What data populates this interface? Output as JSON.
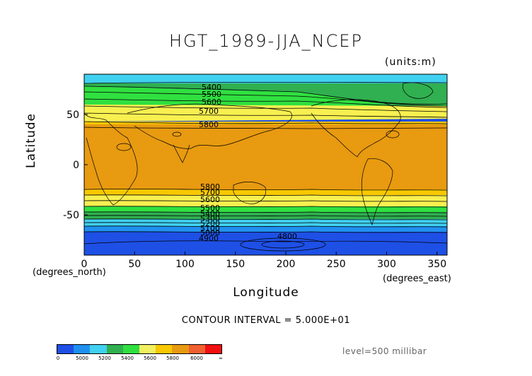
{
  "title": "HGT_1989-JJA_NCEP",
  "units": "(units:m)",
  "axes": {
    "ylabel": "Latitude",
    "xlabel": "Longitude",
    "x_unit": "(degrees_north)",
    "x_unit_right": "(degrees_east)",
    "x_ticks": [
      0,
      50,
      100,
      150,
      200,
      250,
      300,
      350
    ],
    "y_ticks": [
      50,
      0,
      -50
    ],
    "xlim": [
      0,
      360
    ],
    "ylim": [
      -90,
      90
    ]
  },
  "contour_interval": "CONTOUR INTERVAL = 5.000E+01",
  "level": "level=500 millibar",
  "colorbar": {
    "colors": [
      "#1e50e6",
      "#2090f0",
      "#40d0f0",
      "#30b050",
      "#30e040",
      "#f0f060",
      "#f8c800",
      "#e89a10",
      "#f06030",
      "#f01010"
    ],
    "tick_labels": [
      "0",
      "5000",
      "5200",
      "5400",
      "5600",
      "5800",
      "6000",
      "∞"
    ]
  },
  "contour_labels": [
    "5400",
    "5500",
    "5600",
    "5700",
    "5800",
    "5800",
    "5700",
    "5600",
    "5500",
    "5400",
    "5300",
    "5200",
    "5100",
    "5000",
    "4900",
    "4800"
  ],
  "colors": {
    "ocean_blue": "#1e50e6",
    "mid_blue": "#2090f0",
    "cyan": "#40d0f0",
    "green": "#30b050",
    "yellow": "#f8f050",
    "orange": "#e89a10"
  }
}
